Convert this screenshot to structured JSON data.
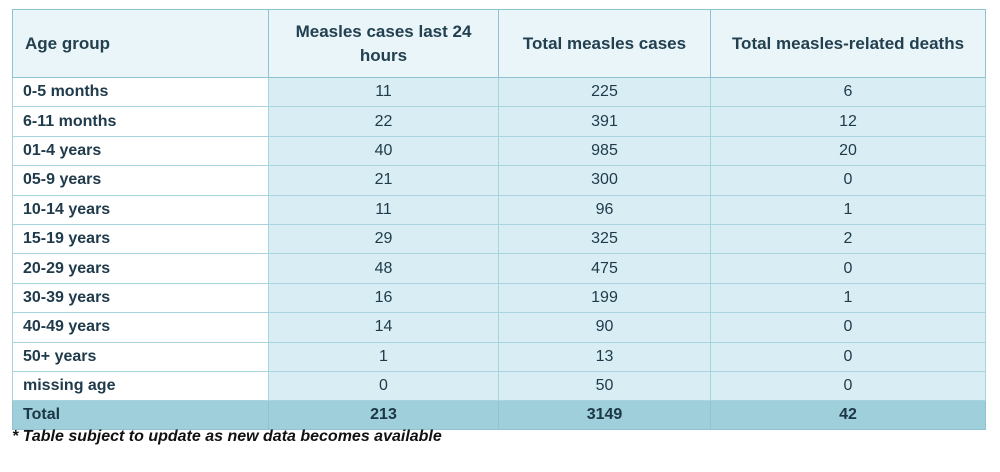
{
  "table": {
    "headers": [
      "Age group",
      "Measles cases last 24 hours",
      "Total measles cases",
      "Total measles-related deaths"
    ],
    "rows": [
      {
        "age": "0-5 months",
        "last24": "11",
        "total": "225",
        "deaths": "6"
      },
      {
        "age": "6-11 months",
        "last24": "22",
        "total": "391",
        "deaths": "12"
      },
      {
        "age": "01-4 years",
        "last24": "40",
        "total": "985",
        "deaths": "20"
      },
      {
        "age": "05-9 years",
        "last24": "21",
        "total": "300",
        "deaths": "0"
      },
      {
        "age": "10-14 years",
        "last24": "11",
        "total": "96",
        "deaths": "1"
      },
      {
        "age": "15-19 years",
        "last24": "29",
        "total": "325",
        "deaths": "2"
      },
      {
        "age": "20-29 years",
        "last24": "48",
        "total": "475",
        "deaths": "0"
      },
      {
        "age": "30-39 years",
        "last24": "16",
        "total": "199",
        "deaths": "1"
      },
      {
        "age": "40-49 years",
        "last24": "14",
        "total": "90",
        "deaths": "0"
      },
      {
        "age": "50+ years",
        "last24": "1",
        "total": "13",
        "deaths": "0"
      },
      {
        "age": "missing age",
        "last24": "0",
        "total": "50",
        "deaths": "0"
      }
    ],
    "total": {
      "label": "Total",
      "last24": "213",
      "total": "3149",
      "deaths": "42"
    }
  },
  "footnote": "* Table subject to update as new data becomes available"
}
